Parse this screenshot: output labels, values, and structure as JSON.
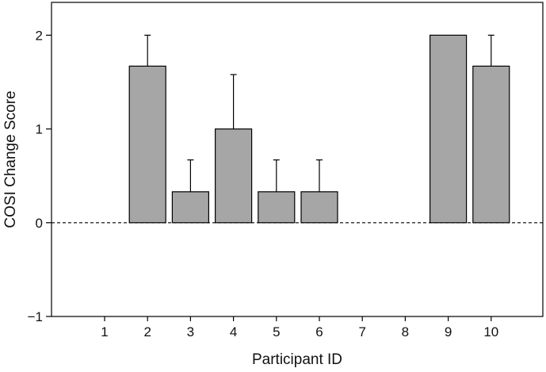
{
  "chart_data": {
    "type": "bar",
    "title": "",
    "xlabel": "Participant ID",
    "ylabel": "COSI Change Score",
    "categories": [
      "1",
      "2",
      "3",
      "4",
      "5",
      "6",
      "7",
      "8",
      "9",
      "10"
    ],
    "values": [
      0,
      1.67,
      0.33,
      1.0,
      0.33,
      0.33,
      0,
      0,
      2.0,
      1.67
    ],
    "error_upper": [
      null,
      2.0,
      0.67,
      1.58,
      0.67,
      0.67,
      null,
      null,
      null,
      2.0
    ],
    "bars_drawn": [
      false,
      true,
      true,
      true,
      true,
      true,
      false,
      false,
      true,
      true
    ],
    "ylim": [
      -1,
      2.35
    ],
    "yticks": [
      "-1",
      "0",
      "1",
      "2"
    ],
    "reference_line": {
      "y": 0,
      "style": "dashed"
    },
    "grid": false,
    "legend": "none",
    "colors": {
      "bar_fill": "#a6a6a6",
      "bar_stroke": "#000000",
      "axis": "#000000"
    }
  }
}
